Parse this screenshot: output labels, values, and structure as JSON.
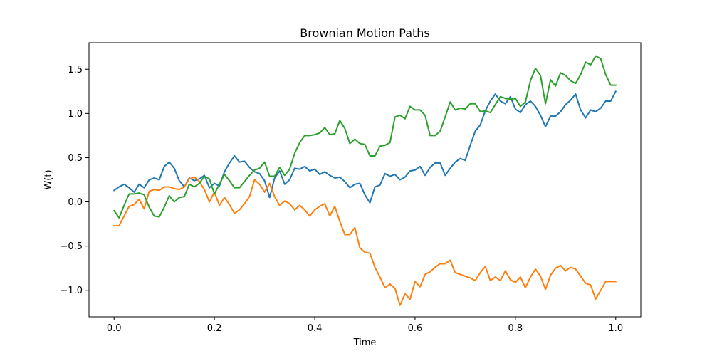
{
  "chart_data": {
    "type": "line",
    "title": "Brownian Motion Paths",
    "xlabel": "Time",
    "ylabel": "W(t)",
    "xlim": [
      -0.05,
      1.05
    ],
    "ylim": [
      -1.3,
      1.8
    ],
    "xticks": [
      0.0,
      0.2,
      0.4,
      0.6,
      0.8,
      1.0
    ],
    "xtick_labels": [
      "0.0",
      "0.2",
      "0.4",
      "0.6",
      "0.8",
      "1.0"
    ],
    "yticks": [
      -1.0,
      -0.5,
      0.0,
      0.5,
      1.0,
      1.5
    ],
    "ytick_labels": [
      "−1.0",
      "−0.5",
      "0.0",
      "0.5",
      "1.0",
      "1.5"
    ],
    "grid": false,
    "legend": "none",
    "x": [
      0.0,
      0.01,
      0.02,
      0.03,
      0.04,
      0.05,
      0.06,
      0.07,
      0.08,
      0.09,
      0.1,
      0.11,
      0.12,
      0.13,
      0.14,
      0.15,
      0.16,
      0.17,
      0.18,
      0.19,
      0.2,
      0.21,
      0.22,
      0.23,
      0.24,
      0.25,
      0.26,
      0.27,
      0.28,
      0.29,
      0.3,
      0.31,
      0.32,
      0.33,
      0.34,
      0.35,
      0.36,
      0.37,
      0.38,
      0.39,
      0.4,
      0.41,
      0.42,
      0.43,
      0.44,
      0.45,
      0.46,
      0.47,
      0.48,
      0.49,
      0.5,
      0.51,
      0.52,
      0.53,
      0.54,
      0.55,
      0.56,
      0.57,
      0.58,
      0.59,
      0.6,
      0.61,
      0.62,
      0.63,
      0.64,
      0.65,
      0.66,
      0.67,
      0.68,
      0.69,
      0.7,
      0.71,
      0.72,
      0.73,
      0.74,
      0.75,
      0.76,
      0.77,
      0.78,
      0.79,
      0.8,
      0.81,
      0.82,
      0.83,
      0.84,
      0.85,
      0.86,
      0.87,
      0.88,
      0.89,
      0.9,
      0.91,
      0.92,
      0.93,
      0.94,
      0.95,
      0.96,
      0.97,
      0.98,
      0.99,
      1.0
    ],
    "series": [
      {
        "color": "#1f77b4",
        "values": [
          0.13,
          0.17,
          0.2,
          0.16,
          0.11,
          0.2,
          0.16,
          0.25,
          0.27,
          0.25,
          0.4,
          0.45,
          0.38,
          0.24,
          0.17,
          0.27,
          0.24,
          0.26,
          0.3,
          0.16,
          0.21,
          0.18,
          0.34,
          0.44,
          0.52,
          0.45,
          0.46,
          0.39,
          0.34,
          0.32,
          0.24,
          0.05,
          0.27,
          0.35,
          0.2,
          0.25,
          0.38,
          0.37,
          0.4,
          0.35,
          0.37,
          0.31,
          0.34,
          0.3,
          0.27,
          0.28,
          0.23,
          0.16,
          0.2,
          0.21,
          0.08,
          -0.01,
          0.17,
          0.19,
          0.32,
          0.29,
          0.31,
          0.25,
          0.28,
          0.35,
          0.36,
          0.4,
          0.3,
          0.39,
          0.44,
          0.44,
          0.3,
          0.38,
          0.45,
          0.49,
          0.47,
          0.64,
          0.8,
          0.87,
          1.03,
          1.14,
          1.22,
          1.14,
          1.11,
          1.19,
          1.05,
          1.01,
          1.1,
          1.14,
          1.08,
          0.98,
          0.85,
          0.97,
          0.97,
          1.02,
          1.1,
          1.15,
          1.22,
          1.04,
          0.95,
          1.04,
          1.02,
          1.06,
          1.14,
          1.14,
          1.25
        ]
      },
      {
        "color": "#ff7f0e",
        "values": [
          -0.27,
          -0.27,
          -0.16,
          -0.05,
          -0.03,
          0.03,
          -0.08,
          0.12,
          0.14,
          0.13,
          0.17,
          0.17,
          0.15,
          0.14,
          0.17,
          0.26,
          0.28,
          0.23,
          0.14,
          0.0,
          0.11,
          -0.04,
          0.05,
          -0.03,
          -0.13,
          -0.09,
          -0.02,
          0.06,
          0.25,
          0.2,
          0.11,
          0.21,
          0.06,
          -0.04,
          0.01,
          -0.02,
          -0.09,
          -0.04,
          -0.09,
          -0.16,
          -0.09,
          -0.05,
          -0.02,
          -0.16,
          -0.05,
          -0.22,
          -0.37,
          -0.37,
          -0.29,
          -0.52,
          -0.57,
          -0.58,
          -0.74,
          -0.85,
          -0.97,
          -0.93,
          -0.98,
          -1.17,
          -1.04,
          -1.1,
          -0.9,
          -0.96,
          -0.82,
          -0.79,
          -0.74,
          -0.7,
          -0.7,
          -0.66,
          -0.8,
          -0.82,
          -0.84,
          -0.86,
          -0.89,
          -0.8,
          -0.73,
          -0.89,
          -0.85,
          -0.89,
          -0.78,
          -0.88,
          -0.91,
          -0.85,
          -0.97,
          -0.85,
          -0.76,
          -0.84,
          -0.99,
          -0.83,
          -0.75,
          -0.72,
          -0.78,
          -0.74,
          -0.76,
          -0.84,
          -0.92,
          -0.94,
          -1.1,
          -1.0,
          -0.9,
          -0.9,
          -0.9
        ]
      },
      {
        "color": "#2ca02c",
        "values": [
          -0.1,
          -0.18,
          -0.04,
          0.09,
          0.09,
          0.1,
          0.08,
          -0.06,
          -0.16,
          -0.17,
          -0.06,
          0.07,
          0.0,
          0.05,
          0.06,
          0.2,
          0.17,
          0.21,
          0.29,
          0.26,
          0.09,
          0.2,
          0.31,
          0.24,
          0.16,
          0.16,
          0.23,
          0.3,
          0.36,
          0.38,
          0.45,
          0.29,
          0.29,
          0.39,
          0.3,
          0.37,
          0.55,
          0.67,
          0.75,
          0.75,
          0.76,
          0.78,
          0.84,
          0.76,
          0.77,
          0.92,
          0.83,
          0.66,
          0.71,
          0.66,
          0.65,
          0.52,
          0.52,
          0.63,
          0.64,
          0.67,
          0.96,
          0.98,
          0.94,
          1.08,
          1.04,
          1.04,
          0.98,
          0.75,
          0.75,
          0.8,
          0.96,
          1.13,
          1.04,
          1.06,
          1.05,
          1.11,
          1.11,
          1.02,
          1.03,
          1.01,
          1.1,
          1.19,
          1.17,
          1.16,
          1.17,
          1.08,
          1.13,
          1.37,
          1.51,
          1.43,
          1.11,
          1.38,
          1.31,
          1.46,
          1.43,
          1.37,
          1.34,
          1.44,
          1.58,
          1.55,
          1.65,
          1.62,
          1.44,
          1.32,
          1.32
        ]
      }
    ]
  }
}
